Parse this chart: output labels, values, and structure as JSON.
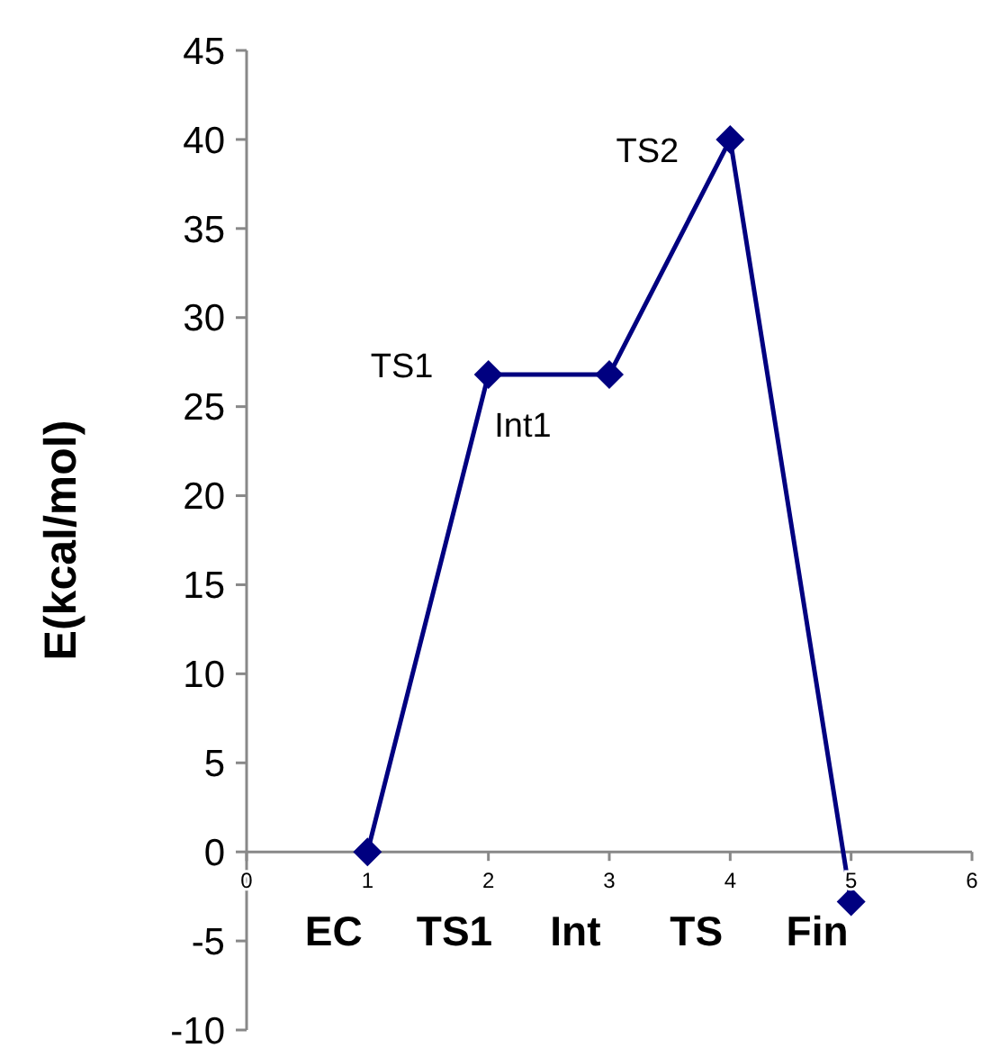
{
  "chart_data": {
    "type": "line",
    "ylabel": "E(kcal/mol)",
    "x": [
      1,
      2,
      3,
      4,
      5
    ],
    "series": [
      {
        "color": "#000080",
        "values": [
          0,
          26.8,
          26.8,
          40,
          -2.8
        ]
      }
    ],
    "xlim": [
      0,
      6
    ],
    "xticks": [
      0,
      1,
      2,
      3,
      4,
      5,
      6
    ],
    "ylim": [
      -10,
      45
    ],
    "yticks": [
      -10,
      -5,
      0,
      5,
      10,
      15,
      20,
      25,
      30,
      35,
      40,
      45
    ],
    "marker": "diamond",
    "grid": false,
    "annotations": [
      {
        "text": "TS1",
        "x": 2,
        "y": 26.8
      },
      {
        "text": "Int1",
        "x": 3,
        "y": 26.8
      },
      {
        "text": "TS2",
        "x": 4,
        "y": 40
      },
      "EC",
      "TS1",
      "Int",
      "TS",
      "Fin"
    ]
  }
}
